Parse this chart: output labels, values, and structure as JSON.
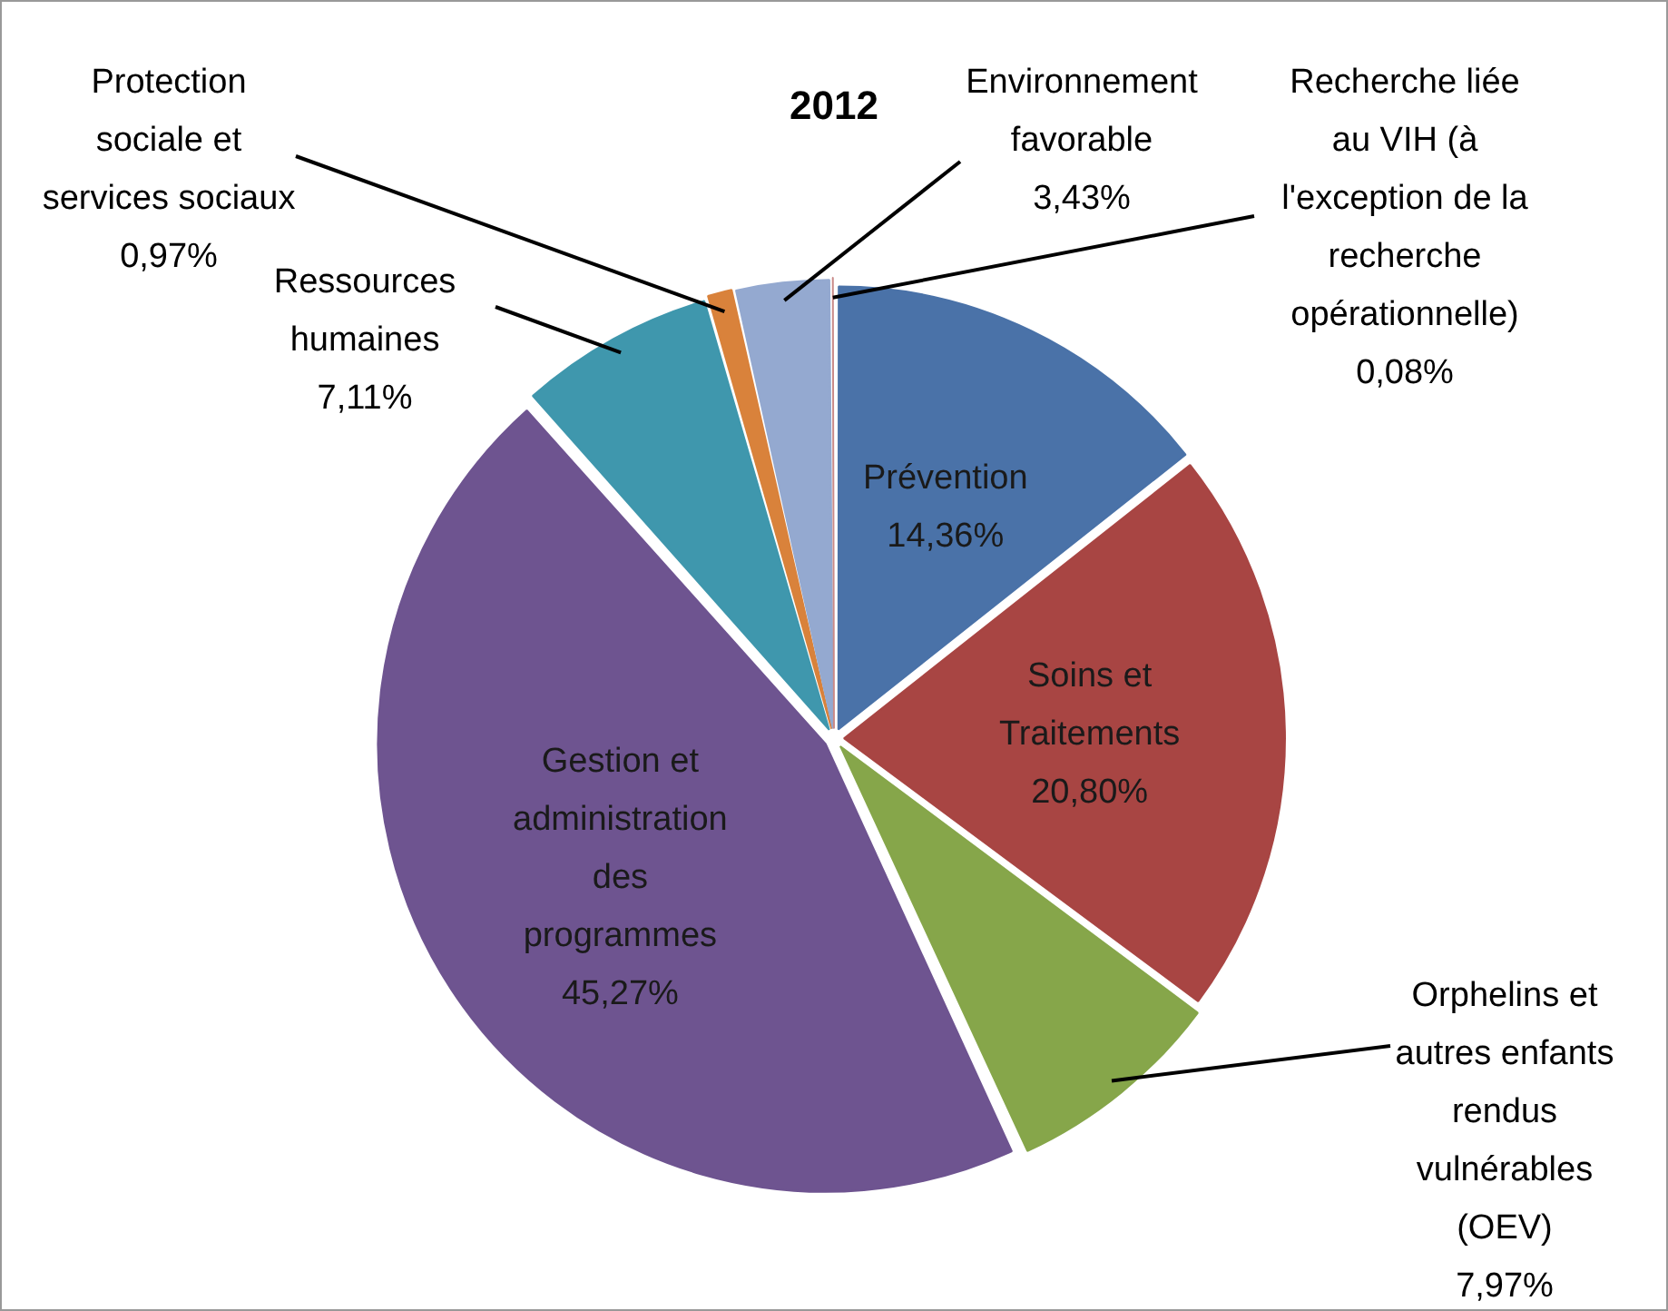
{
  "chart_data": {
    "type": "pie",
    "title": "2012",
    "categories": [
      "Prévention",
      "Soins et Traitements",
      "Orphelins et autres enfants rendus vulnérables (OEV)",
      "Gestion et administration des programmes",
      "Ressources humaines",
      "Protection sociale et services sociaux",
      "Environnement favorable",
      "Recherche liée au VIH (à l'exception de la recherche opérationnelle)"
    ],
    "values": [
      14.36,
      20.8,
      7.97,
      45.27,
      7.11,
      0.97,
      3.43,
      0.08
    ],
    "colors": [
      "#4a72a8",
      "#a84543",
      "#86a64a",
      "#6e5490",
      "#3f97ad",
      "#d9823b",
      "#94a9d0",
      "#c98a88"
    ],
    "value_labels": [
      "14,36%",
      "20,80%",
      "7,97%",
      "45,27%",
      "7,11%",
      "0,97%",
      "3,43%",
      "0,08%"
    ],
    "legend": false
  }
}
